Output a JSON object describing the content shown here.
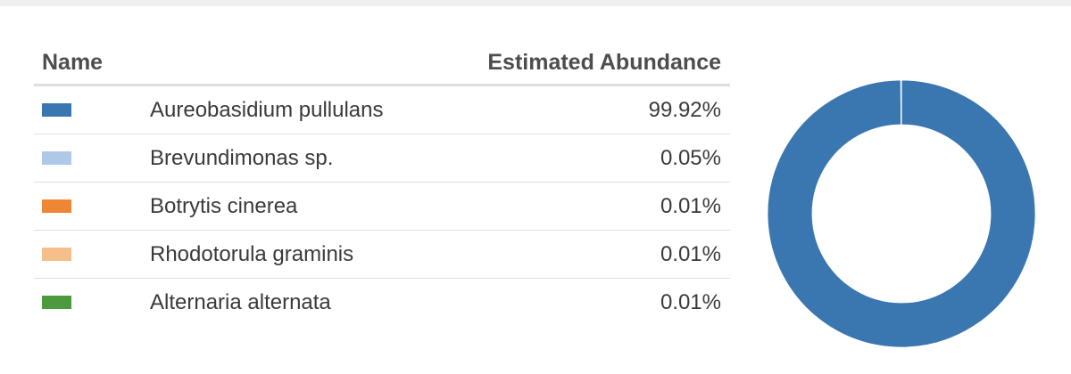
{
  "table": {
    "headers": {
      "name": "Name",
      "abundance": "Estimated Abundance"
    }
  },
  "chart_data": {
    "type": "pie",
    "donut": true,
    "categories": [
      "Aureobasidium pullulans",
      "Brevundimonas sp.",
      "Botrytis cinerea",
      "Rhodotorula graminis",
      "Alternaria alternata"
    ],
    "values": [
      99.92,
      0.05,
      0.01,
      0.01,
      0.01
    ],
    "value_labels": [
      "99.92%",
      "0.05%",
      "0.01%",
      "0.01%",
      "0.01%"
    ],
    "colors": [
      "#3a76b0",
      "#b0c8e8",
      "#ee8635",
      "#f5bf8c",
      "#4b9b3e"
    ],
    "legend": "table-left"
  }
}
